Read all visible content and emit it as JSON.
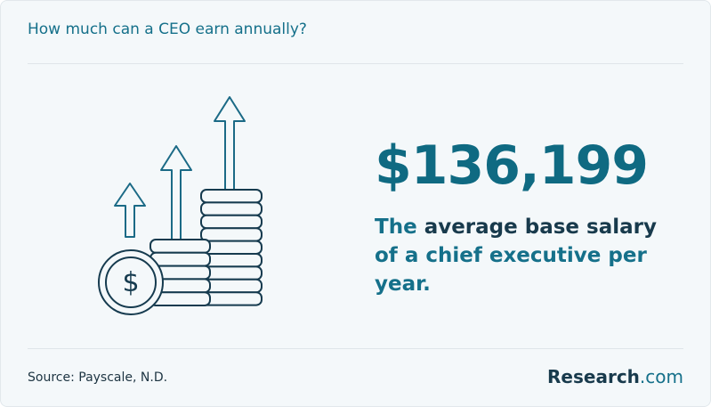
{
  "header": {
    "title": "How much can a CEO earn annually?"
  },
  "stat": {
    "value": "$136,199",
    "description": [
      "The",
      "average base salary",
      "of a",
      "chief executive per year."
    ]
  },
  "footer": {
    "source": "Source: Payscale, N.D.",
    "logo": [
      "Research",
      ".com"
    ]
  }
}
